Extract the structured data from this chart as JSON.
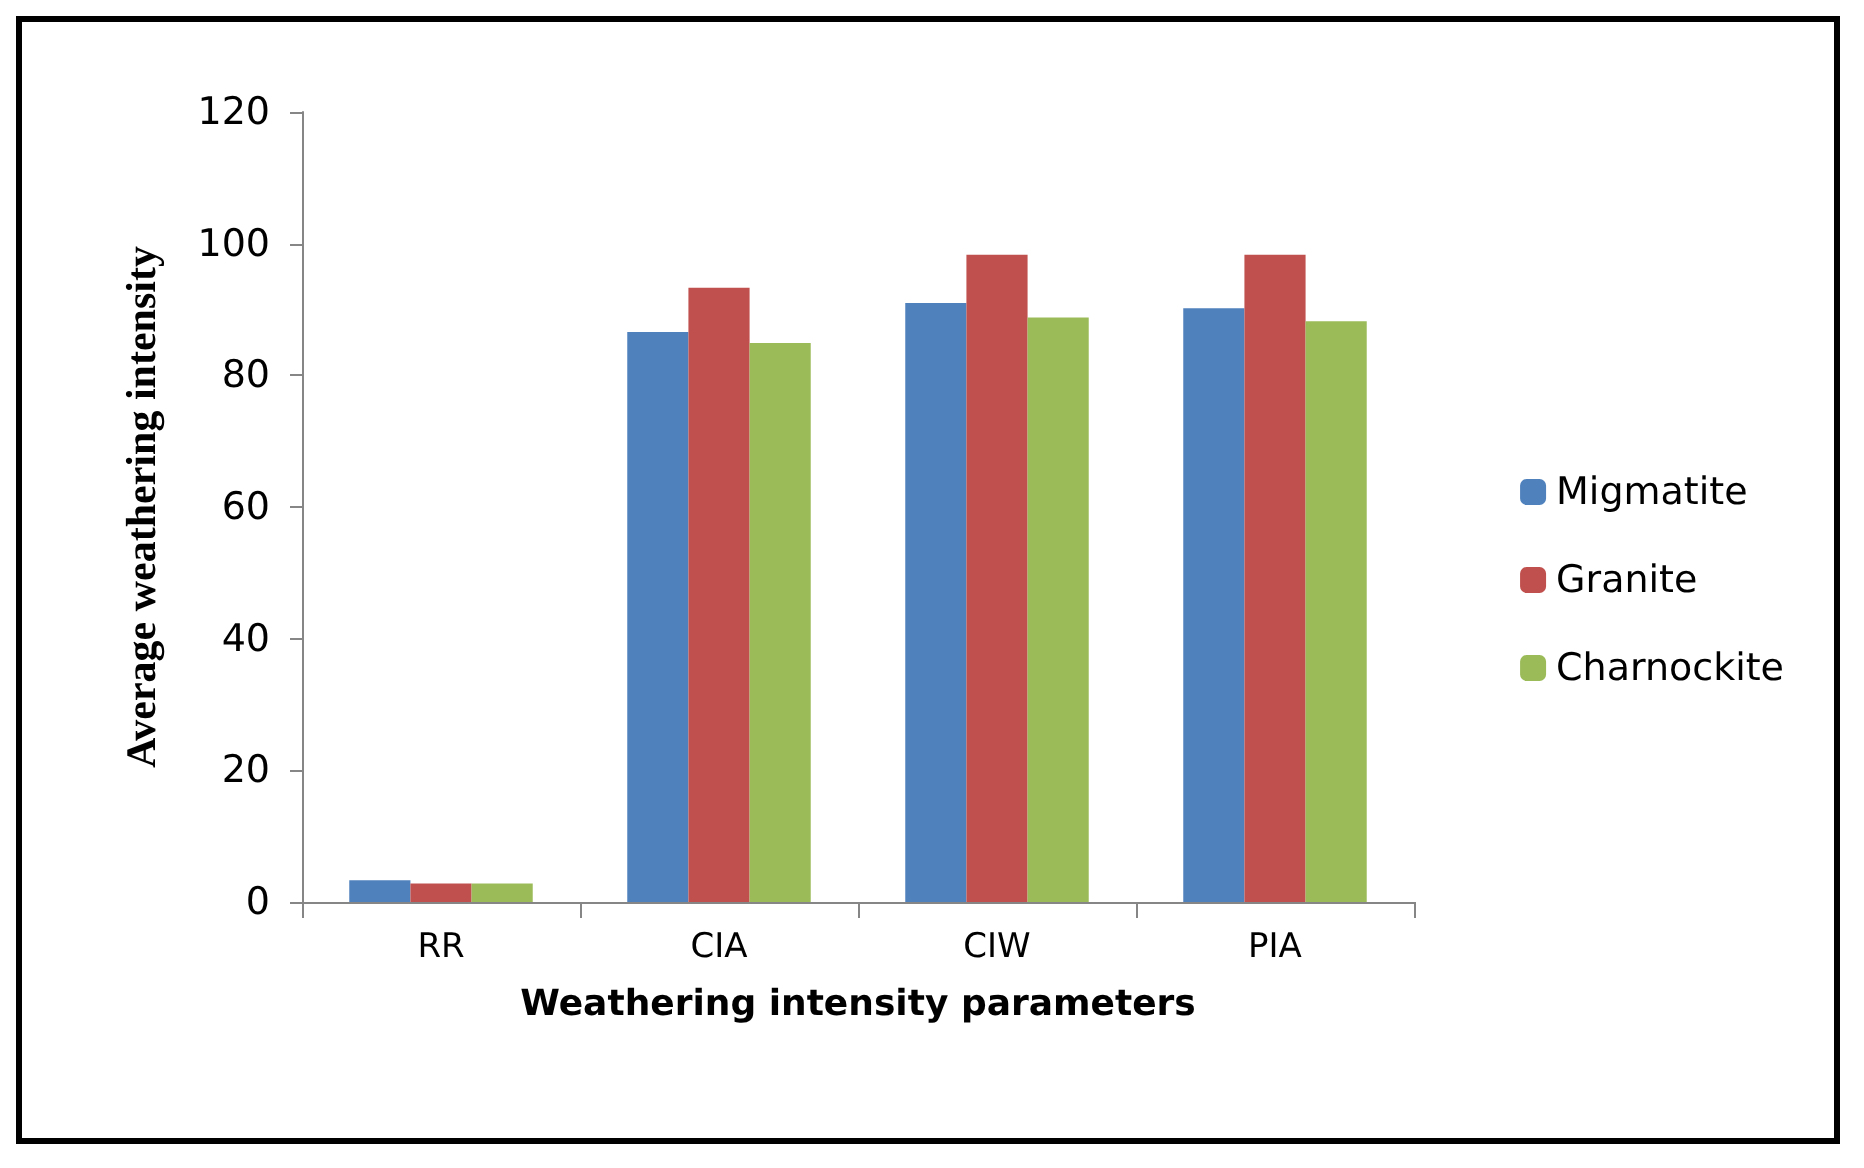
{
  "chart_data": {
    "type": "bar",
    "xlabel": "Weathering intensity parameters",
    "ylabel": "Average weathering intensity",
    "categories": [
      "RR",
      "CIA",
      "CIW",
      "PIA"
    ],
    "series": [
      {
        "name": "Migmatite",
        "color": "#4f81bd",
        "values": [
          3.3,
          86.6,
          91.0,
          90.2
        ]
      },
      {
        "name": "Granite",
        "color": "#c0504d",
        "values": [
          2.8,
          93.3,
          98.3,
          98.3
        ]
      },
      {
        "name": "Charnockite",
        "color": "#9bbb59",
        "values": [
          2.8,
          84.9,
          88.8,
          88.2
        ]
      }
    ],
    "ylim": [
      0,
      120
    ],
    "yticks": [
      0,
      20,
      40,
      60,
      80,
      100,
      120
    ],
    "grid": false,
    "legend": "right"
  }
}
